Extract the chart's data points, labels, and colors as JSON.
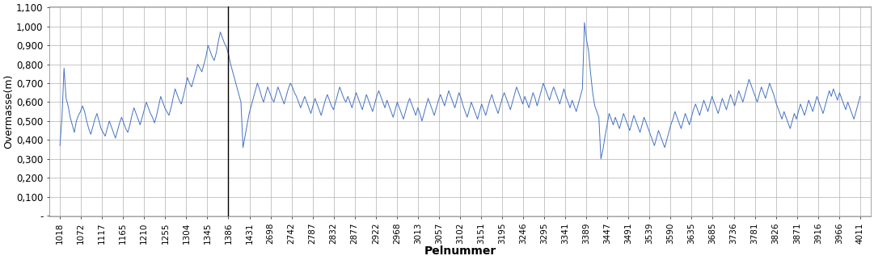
{
  "x_labels": [
    "1018",
    "1072",
    "1117",
    "1165",
    "1210",
    "1255",
    "1304",
    "1345",
    "1386",
    "1431",
    "2698",
    "2742",
    "2787",
    "2832",
    "2877",
    "2922",
    "2968",
    "3013",
    "3057",
    "3102",
    "3151",
    "3195",
    "3246",
    "3295",
    "3341",
    "3389",
    "3447",
    "3491",
    "3539",
    "3590",
    "3635",
    "3685",
    "3736",
    "3781",
    "3826",
    "3871",
    "3916",
    "3966",
    "4011"
  ],
  "vline_x_label": "1386",
  "ylabel": "Overmasse(m)",
  "xlabel": "Pelnummer",
  "line_color": "#4472C4",
  "vline_color": "#000000",
  "background_color": "#FFFFFF",
  "grid_color": "#B0B0B0",
  "ylim": [
    0.0,
    1.1
  ],
  "yticks": [
    0.0,
    0.1,
    0.2,
    0.3,
    0.4,
    0.5,
    0.6,
    0.7,
    0.8,
    0.9,
    1.0,
    1.1
  ],
  "ytick_labels": [
    "-",
    "0,100",
    "0,200",
    "0,300",
    "0,400",
    "0,500",
    "0,600",
    "0,700",
    "0,800",
    "0,900",
    "1,000",
    "1,100"
  ],
  "y_data": [
    0.37,
    0.52,
    0.78,
    0.62,
    0.58,
    0.52,
    0.48,
    0.44,
    0.5,
    0.53,
    0.55,
    0.58,
    0.55,
    0.5,
    0.46,
    0.43,
    0.47,
    0.51,
    0.54,
    0.5,
    0.46,
    0.44,
    0.42,
    0.46,
    0.5,
    0.47,
    0.44,
    0.41,
    0.45,
    0.49,
    0.52,
    0.49,
    0.46,
    0.44,
    0.48,
    0.53,
    0.57,
    0.54,
    0.51,
    0.48,
    0.52,
    0.56,
    0.6,
    0.57,
    0.54,
    0.52,
    0.49,
    0.53,
    0.58,
    0.63,
    0.6,
    0.57,
    0.55,
    0.53,
    0.57,
    0.62,
    0.67,
    0.64,
    0.61,
    0.59,
    0.63,
    0.68,
    0.73,
    0.7,
    0.68,
    0.72,
    0.76,
    0.8,
    0.78,
    0.76,
    0.8,
    0.84,
    0.9,
    0.87,
    0.84,
    0.82,
    0.86,
    0.92,
    0.97,
    0.94,
    0.91,
    0.89,
    0.85,
    0.8,
    0.76,
    0.72,
    0.68,
    0.64,
    0.6,
    0.36,
    0.42,
    0.48,
    0.54,
    0.58,
    0.62,
    0.66,
    0.7,
    0.67,
    0.63,
    0.6,
    0.64,
    0.68,
    0.65,
    0.62,
    0.6,
    0.64,
    0.68,
    0.65,
    0.62,
    0.59,
    0.63,
    0.67,
    0.7,
    0.68,
    0.65,
    0.63,
    0.6,
    0.57,
    0.6,
    0.63,
    0.6,
    0.57,
    0.54,
    0.58,
    0.62,
    0.59,
    0.56,
    0.53,
    0.57,
    0.61,
    0.64,
    0.61,
    0.58,
    0.56,
    0.6,
    0.64,
    0.68,
    0.65,
    0.62,
    0.6,
    0.63,
    0.6,
    0.57,
    0.61,
    0.65,
    0.62,
    0.59,
    0.56,
    0.6,
    0.64,
    0.61,
    0.58,
    0.55,
    0.59,
    0.63,
    0.66,
    0.63,
    0.6,
    0.57,
    0.61,
    0.58,
    0.55,
    0.52,
    0.56,
    0.6,
    0.57,
    0.54,
    0.51,
    0.55,
    0.59,
    0.62,
    0.59,
    0.56,
    0.53,
    0.57,
    0.54,
    0.5,
    0.54,
    0.58,
    0.62,
    0.59,
    0.56,
    0.53,
    0.57,
    0.61,
    0.64,
    0.61,
    0.58,
    0.62,
    0.66,
    0.63,
    0.6,
    0.57,
    0.61,
    0.65,
    0.62,
    0.58,
    0.55,
    0.52,
    0.56,
    0.6,
    0.57,
    0.54,
    0.51,
    0.55,
    0.59,
    0.56,
    0.53,
    0.57,
    0.61,
    0.64,
    0.6,
    0.57,
    0.54,
    0.58,
    0.62,
    0.65,
    0.62,
    0.59,
    0.56,
    0.6,
    0.64,
    0.68,
    0.65,
    0.62,
    0.59,
    0.63,
    0.6,
    0.57,
    0.61,
    0.65,
    0.62,
    0.58,
    0.62,
    0.66,
    0.7,
    0.67,
    0.64,
    0.61,
    0.65,
    0.68,
    0.65,
    0.62,
    0.59,
    0.63,
    0.67,
    0.63,
    0.6,
    0.57,
    0.61,
    0.58,
    0.55,
    0.59,
    0.63,
    0.67,
    1.02,
    0.93,
    0.87,
    0.75,
    0.65,
    0.58,
    0.55,
    0.52,
    0.3,
    0.35,
    0.42,
    0.48,
    0.54,
    0.51,
    0.48,
    0.52,
    0.49,
    0.46,
    0.5,
    0.54,
    0.51,
    0.48,
    0.45,
    0.49,
    0.53,
    0.5,
    0.47,
    0.44,
    0.48,
    0.52,
    0.49,
    0.46,
    0.43,
    0.4,
    0.37,
    0.41,
    0.45,
    0.42,
    0.39,
    0.36,
    0.4,
    0.44,
    0.48,
    0.51,
    0.55,
    0.52,
    0.49,
    0.46,
    0.5,
    0.54,
    0.51,
    0.48,
    0.52,
    0.56,
    0.59,
    0.56,
    0.53,
    0.57,
    0.61,
    0.58,
    0.55,
    0.59,
    0.63,
    0.6,
    0.57,
    0.54,
    0.58,
    0.62,
    0.59,
    0.56,
    0.6,
    0.64,
    0.61,
    0.58,
    0.62,
    0.66,
    0.63,
    0.6,
    0.64,
    0.68,
    0.72,
    0.69,
    0.66,
    0.63,
    0.6,
    0.64,
    0.68,
    0.65,
    0.62,
    0.66,
    0.7,
    0.67,
    0.64,
    0.6,
    0.57,
    0.54,
    0.51,
    0.55,
    0.52,
    0.49,
    0.46,
    0.5,
    0.54,
    0.51,
    0.55,
    0.59,
    0.56,
    0.53,
    0.57,
    0.61,
    0.58,
    0.55,
    0.59,
    0.63,
    0.6,
    0.57,
    0.54,
    0.58,
    0.62,
    0.66,
    0.63,
    0.67,
    0.64,
    0.61,
    0.65,
    0.62,
    0.59,
    0.56,
    0.6,
    0.57,
    0.54,
    0.51,
    0.55,
    0.59,
    0.63
  ]
}
